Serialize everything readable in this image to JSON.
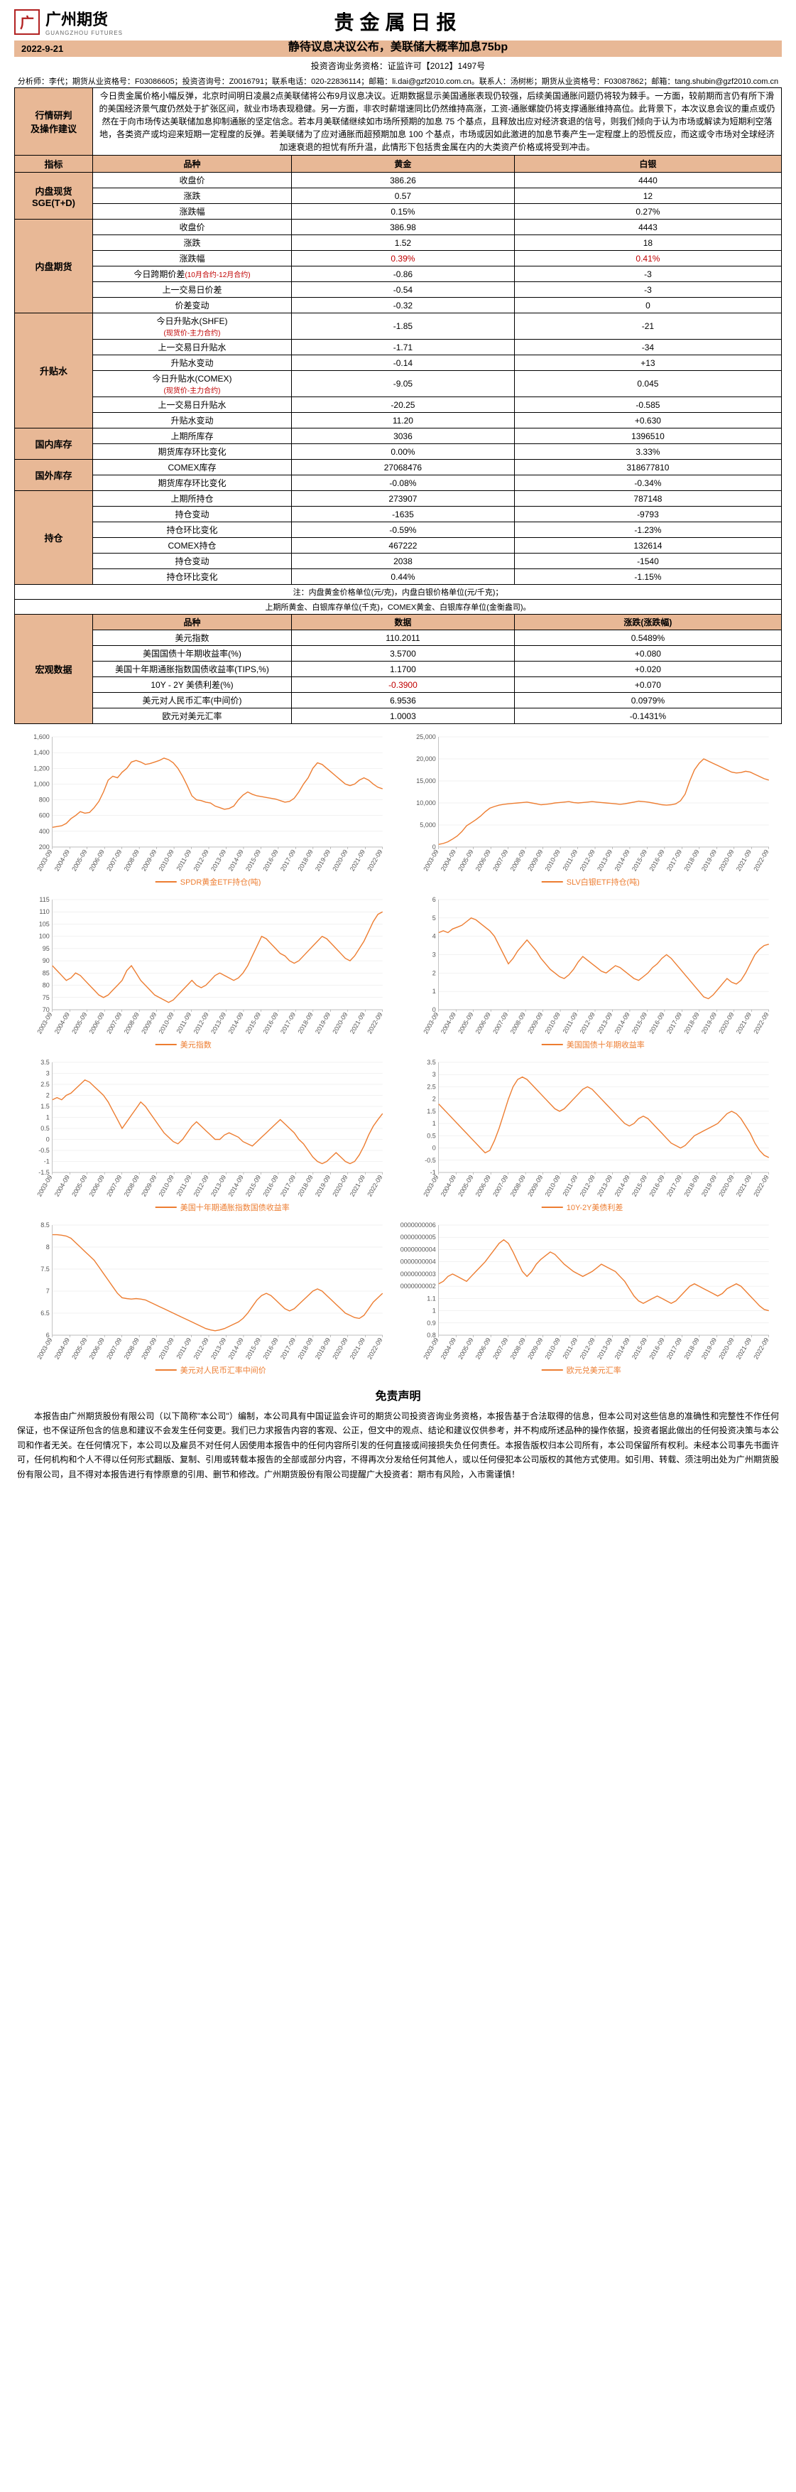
{
  "header": {
    "logo_char": "广",
    "logo_text": "广州期货",
    "logo_sub": "GUANGZHOU FUTURES",
    "main_title": "贵金属日报",
    "sub_title": "静待议息决议公布，美联储大概率加息75bp",
    "date": "2022-9-21",
    "cred1": "投资咨询业务资格：证监许可【2012】1497号",
    "cred2": "分析师：李代；期货从业资格号：F03086605；投资咨询号：Z0016791；联系电话：020-22836114；邮箱：li.dai@gzf2010.com.cn。联系人：汤树彬；期货从业资格号：F03087862；邮箱：tang.shubin@gzf2010.com.cn"
  },
  "sections": {
    "analysis_label": "行情研判\n及操作建议",
    "analysis_text": "今日贵金属价格小幅反弹，北京时间明日凌晨2点美联储将公布9月议息决议。近期数据显示美国通胀表现仍较强，后续美国通胀问题仍将较为棘手。一方面，较前期而言仍有所下滑的美国经济景气度仍然处于扩张区间，就业市场表现稳健。另一方面，非农时薪增速同比仍然维持高涨，工资-通胀螺旋仍将支撑通胀维持高位。此背景下，本次议息会议的重点或仍然在于向市场传达美联储加息抑制通胀的坚定信念。若本月美联储继续如市场所预期的加息 75 个基点，且释放出应对经济衰退的信号，则我们倾向于认为市场或解读为短期利空落地，各类资产或均迎来短期一定程度的反弹。若美联储为了应对通胀而超预期加息 100 个基点，市场或因如此激进的加息节奏产生一定程度上的恐慌反应，而这或令市场对全球经济加速衰退的担忧有所升温，此情形下包括贵金属在内的大类资产价格或将受到冲击。",
    "indicator_label": "指标",
    "col_variety": "品种",
    "col_gold": "黄金",
    "col_silver": "白银",
    "col_data": "数据",
    "col_change": "涨跌(涨跌幅)"
  },
  "groups": [
    {
      "label": "内盘现货\nSGE(T+D)",
      "rows": [
        {
          "n": "收盘价",
          "g": "386.26",
          "s": "4440"
        },
        {
          "n": "涨跌",
          "g": "0.57",
          "s": "12"
        },
        {
          "n": "涨跌幅",
          "g": "0.15%",
          "s": "0.27%"
        }
      ]
    },
    {
      "label": "内盘期货",
      "rows": [
        {
          "n": "收盘价",
          "g": "386.98",
          "s": "4443"
        },
        {
          "n": "涨跌",
          "g": "1.52",
          "s": "18"
        },
        {
          "n": "涨跌幅",
          "g": "0.39%",
          "s": "0.41%",
          "red": true
        },
        {
          "n": "今日跨期价差(10月合约-12月合约)",
          "g": "-0.86",
          "s": "-3",
          "nred": true
        },
        {
          "n": "上一交易日价差",
          "g": "-0.54",
          "s": "-3"
        },
        {
          "n": "价差变动",
          "g": "-0.32",
          "s": "0"
        }
      ]
    },
    {
      "label": "升贴水",
      "rows": [
        {
          "n": "今日升贴水(SHFE)",
          "sub": "(现货价-主力合约)",
          "g": "-1.85",
          "s": "-21"
        },
        {
          "n": "上一交易日升贴水",
          "g": "-1.71",
          "s": "-34"
        },
        {
          "n": "升贴水变动",
          "g": "-0.14",
          "s": "+13"
        },
        {
          "n": "今日升贴水(COMEX)",
          "sub": "(现货价-主力合约)",
          "g": "-9.05",
          "s": "0.045"
        },
        {
          "n": "上一交易日升贴水",
          "g": "-20.25",
          "s": "-0.585"
        },
        {
          "n": "升贴水变动",
          "g": "11.20",
          "s": "+0.630"
        }
      ]
    },
    {
      "label": "国内库存",
      "rows": [
        {
          "n": "上期所库存",
          "g": "3036",
          "s": "1396510"
        },
        {
          "n": "期货库存环比变化",
          "g": "0.00%",
          "s": "3.33%"
        }
      ]
    },
    {
      "label": "国外库存",
      "rows": [
        {
          "n": "COMEX库存",
          "g": "27068476",
          "s": "318677810"
        },
        {
          "n": "期货库存环比变化",
          "g": "-0.08%",
          "s": "-0.34%"
        }
      ]
    },
    {
      "label": "持仓",
      "rows": [
        {
          "n": "上期所持仓",
          "g": "273907",
          "s": "787148"
        },
        {
          "n": "持仓变动",
          "g": "-1635",
          "s": "-9793"
        },
        {
          "n": "持仓环比变化",
          "g": "-0.59%",
          "s": "-1.23%"
        },
        {
          "n": "COMEX持仓",
          "g": "467222",
          "s": "132614"
        },
        {
          "n": "持仓变动",
          "g": "2038",
          "s": "-1540"
        },
        {
          "n": "持仓环比变化",
          "g": "0.44%",
          "s": "-1.15%"
        }
      ]
    }
  ],
  "notes": [
    "注：内盘黄金价格单位(元/克)，内盘白银价格单位(元/千克)；",
    "上期所黄金、白银库存单位(千克)，COMEX黄金、白银库存单位(金衡盎司)。"
  ],
  "macro": {
    "label": "宏观数据",
    "rows": [
      {
        "n": "美元指数",
        "d": "110.2011",
        "c": "0.5489%"
      },
      {
        "n": "美国国债十年期收益率(%)",
        "d": "3.5700",
        "c": "+0.080"
      },
      {
        "n": "美国十年期通胀指数国债收益率(TIPS,%)",
        "d": "1.1700",
        "c": "+0.020"
      },
      {
        "n": "10Y - 2Y 美债利差(%)",
        "d": "-0.3900",
        "c": "+0.070",
        "dred": true
      },
      {
        "n": "美元对人民币汇率(中间价)",
        "d": "6.9536",
        "c": "0.0979%"
      },
      {
        "n": "欧元对美元汇率",
        "d": "1.0003",
        "c": "-0.1431%"
      }
    ]
  },
  "charts": [
    {
      "legend": "SPDR黄金ETF持仓(吨)",
      "ymin": 200,
      "ymax": 1600,
      "ystep": 200,
      "data": [
        450,
        460,
        470,
        500,
        560,
        600,
        650,
        630,
        640,
        700,
        780,
        900,
        1050,
        1100,
        1080,
        1150,
        1200,
        1280,
        1300,
        1280,
        1250,
        1260,
        1280,
        1300,
        1330,
        1310,
        1270,
        1200,
        1100,
        980,
        850,
        800,
        790,
        770,
        760,
        720,
        700,
        680,
        690,
        720,
        800,
        860,
        900,
        870,
        850,
        840,
        830,
        820,
        810,
        790,
        770,
        780,
        820,
        900,
        1000,
        1080,
        1200,
        1270,
        1250,
        1200,
        1150,
        1100,
        1050,
        1000,
        980,
        1000,
        1050,
        1080,
        1050,
        1000,
        960,
        940
      ]
    },
    {
      "legend": "SLV白银ETF持仓(吨)",
      "ymin": 0,
      "ymax": 25000,
      "ystep": 5000,
      "data": [
        600,
        800,
        1200,
        1800,
        2500,
        3500,
        4800,
        5500,
        6200,
        7000,
        8000,
        8800,
        9200,
        9500,
        9700,
        9800,
        9900,
        10000,
        10100,
        10200,
        10000,
        9800,
        9600,
        9700,
        9800,
        10000,
        10100,
        10200,
        10300,
        10100,
        10000,
        10100,
        10200,
        10300,
        10200,
        10100,
        10000,
        9900,
        9800,
        9700,
        9800,
        10000,
        10200,
        10400,
        10300,
        10200,
        10000,
        9800,
        9600,
        9500,
        9600,
        9800,
        10500,
        12000,
        15000,
        17500,
        19000,
        20000,
        19500,
        19000,
        18500,
        18000,
        17500,
        17000,
        16800,
        16900,
        17200,
        17000,
        16500,
        16000,
        15500,
        15200
      ]
    },
    {
      "legend": "美元指数",
      "ymin": 70,
      "ymax": 115,
      "ystep": 5,
      "data": [
        88,
        86,
        84,
        82,
        83,
        85,
        84,
        82,
        80,
        78,
        76,
        75,
        76,
        78,
        80,
        82,
        86,
        88,
        85,
        82,
        80,
        78,
        76,
        75,
        74,
        73,
        74,
        76,
        78,
        80,
        82,
        80,
        79,
        80,
        82,
        84,
        85,
        84,
        83,
        82,
        83,
        85,
        88,
        92,
        96,
        100,
        99,
        97,
        95,
        93,
        92,
        90,
        89,
        90,
        92,
        94,
        96,
        98,
        100,
        99,
        97,
        95,
        93,
        91,
        90,
        92,
        95,
        98,
        102,
        106,
        109,
        110
      ]
    },
    {
      "legend": "美国国债十年期收益率",
      "ymin": 0,
      "ymax": 6,
      "ystep": 1,
      "data": [
        4.2,
        4.3,
        4.2,
        4.4,
        4.5,
        4.6,
        4.8,
        5.0,
        4.9,
        4.7,
        4.5,
        4.3,
        4.0,
        3.5,
        3.0,
        2.5,
        2.8,
        3.2,
        3.5,
        3.8,
        3.5,
        3.2,
        2.8,
        2.5,
        2.2,
        2.0,
        1.8,
        1.7,
        1.9,
        2.2,
        2.6,
        2.9,
        2.7,
        2.5,
        2.3,
        2.1,
        2.0,
        2.2,
        2.4,
        2.3,
        2.1,
        1.9,
        1.7,
        1.6,
        1.8,
        2.0,
        2.3,
        2.5,
        2.8,
        3.0,
        2.8,
        2.5,
        2.2,
        1.9,
        1.6,
        1.3,
        1.0,
        0.7,
        0.6,
        0.8,
        1.1,
        1.4,
        1.7,
        1.5,
        1.4,
        1.6,
        2.0,
        2.5,
        3.0,
        3.3,
        3.5,
        3.57
      ]
    },
    {
      "legend": "美国十年期通胀指数国债收益率",
      "ymin": -1.5,
      "ymax": 3.5,
      "ystep": 0.5,
      "data": [
        1.8,
        1.9,
        1.8,
        2.0,
        2.1,
        2.3,
        2.5,
        2.7,
        2.6,
        2.4,
        2.2,
        2.0,
        1.7,
        1.3,
        0.9,
        0.5,
        0.8,
        1.1,
        1.4,
        1.7,
        1.5,
        1.2,
        0.9,
        0.6,
        0.3,
        0.1,
        -0.1,
        -0.2,
        0.0,
        0.3,
        0.6,
        0.8,
        0.6,
        0.4,
        0.2,
        0.0,
        0.0,
        0.2,
        0.3,
        0.2,
        0.1,
        -0.1,
        -0.2,
        -0.3,
        -0.1,
        0.1,
        0.3,
        0.5,
        0.7,
        0.9,
        0.7,
        0.5,
        0.3,
        0.0,
        -0.2,
        -0.5,
        -0.8,
        -1.0,
        -1.1,
        -1.0,
        -0.8,
        -0.6,
        -0.8,
        -1.0,
        -1.1,
        -1.0,
        -0.7,
        -0.3,
        0.2,
        0.6,
        0.9,
        1.17
      ]
    },
    {
      "legend": "10Y-2Y美债利差",
      "ymin": -1.0,
      "ymax": 3.5,
      "ystep": 0.5,
      "data": [
        1.8,
        1.6,
        1.4,
        1.2,
        1.0,
        0.8,
        0.6,
        0.4,
        0.2,
        0.0,
        -0.2,
        -0.1,
        0.3,
        0.8,
        1.4,
        2.0,
        2.5,
        2.8,
        2.9,
        2.8,
        2.6,
        2.4,
        2.2,
        2.0,
        1.8,
        1.6,
        1.5,
        1.6,
        1.8,
        2.0,
        2.2,
        2.4,
        2.5,
        2.4,
        2.2,
        2.0,
        1.8,
        1.6,
        1.4,
        1.2,
        1.0,
        0.9,
        1.0,
        1.2,
        1.3,
        1.2,
        1.0,
        0.8,
        0.6,
        0.4,
        0.2,
        0.1,
        0.0,
        0.1,
        0.3,
        0.5,
        0.6,
        0.7,
        0.8,
        0.9,
        1.0,
        1.2,
        1.4,
        1.5,
        1.4,
        1.2,
        0.9,
        0.6,
        0.2,
        -0.1,
        -0.3,
        -0.39
      ]
    },
    {
      "legend": "美元对人民币汇率中间价",
      "ymin": 6.0,
      "ymax": 8.5,
      "ystep": 0.5,
      "data": [
        8.28,
        8.28,
        8.27,
        8.25,
        8.2,
        8.1,
        8.0,
        7.9,
        7.8,
        7.7,
        7.55,
        7.4,
        7.25,
        7.1,
        6.95,
        6.85,
        6.83,
        6.82,
        6.83,
        6.82,
        6.8,
        6.75,
        6.7,
        6.65,
        6.6,
        6.55,
        6.5,
        6.45,
        6.4,
        6.35,
        6.3,
        6.25,
        6.2,
        6.15,
        6.12,
        6.1,
        6.12,
        6.15,
        6.2,
        6.25,
        6.3,
        6.38,
        6.5,
        6.65,
        6.8,
        6.9,
        6.95,
        6.9,
        6.8,
        6.7,
        6.6,
        6.55,
        6.6,
        6.7,
        6.8,
        6.9,
        7.0,
        7.05,
        7.0,
        6.9,
        6.8,
        6.7,
        6.6,
        6.5,
        6.45,
        6.4,
        6.38,
        6.45,
        6.6,
        6.75,
        6.85,
        6.95
      ]
    },
    {
      "legend": "欧元兑美元汇率",
      "ymin": 0.8,
      "ymax": 1.7,
      "ystep": 0.1,
      "data": [
        1.22,
        1.24,
        1.28,
        1.3,
        1.28,
        1.26,
        1.24,
        1.28,
        1.32,
        1.36,
        1.4,
        1.45,
        1.5,
        1.55,
        1.58,
        1.55,
        1.48,
        1.4,
        1.32,
        1.28,
        1.32,
        1.38,
        1.42,
        1.45,
        1.48,
        1.46,
        1.42,
        1.38,
        1.35,
        1.32,
        1.3,
        1.28,
        1.3,
        1.32,
        1.35,
        1.38,
        1.36,
        1.34,
        1.32,
        1.28,
        1.24,
        1.18,
        1.12,
        1.08,
        1.06,
        1.08,
        1.1,
        1.12,
        1.1,
        1.08,
        1.06,
        1.08,
        1.12,
        1.16,
        1.2,
        1.22,
        1.2,
        1.18,
        1.16,
        1.14,
        1.12,
        1.14,
        1.18,
        1.2,
        1.22,
        1.2,
        1.16,
        1.12,
        1.08,
        1.04,
        1.01,
        1.0
      ]
    }
  ],
  "xaxis": [
    "2003-09",
    "2004-09",
    "2005-09",
    "2006-09",
    "2007-09",
    "2008-09",
    "2009-09",
    "2010-09",
    "2011-09",
    "2012-09",
    "2013-09",
    "2014-09",
    "2015-09",
    "2016-09",
    "2017-09",
    "2018-09",
    "2019-09",
    "2020-09",
    "2021-09",
    "2022-09"
  ],
  "disclaimer": {
    "title": "免责声明",
    "text": "本报告由广州期货股份有限公司（以下简称\"本公司\"）编制，本公司具有中国证监会许可的期货公司投资咨询业务资格，本报告基于合法取得的信息，但本公司对这些信息的准确性和完整性不作任何保证，也不保证所包含的信息和建议不会发生任何变更。我们已力求报告内容的客观、公正，但文中的观点、结论和建议仅供参考，并不构成所述品种的操作依据，投资者据此做出的任何投资决策与本公司和作者无关。在任何情况下，本公司以及雇员不对任何人因使用本报告中的任何内容所引发的任何直接或间接损失负任何责任。本报告版权归本公司所有，本公司保留所有权利。未经本公司事先书面许可，任何机构和个人不得以任何形式翻版、复制、引用或转载本报告的全部或部分内容，不得再次分发给任何其他人，或以任何侵犯本公司版权的其他方式使用。如引用、转载、须注明出处为广州期货股份有限公司，且不得对本报告进行有悖原意的引用、删节和修改。广州期货股份有限公司提醒广大投资者：期市有风险，入市需谨慎！"
  },
  "colors": {
    "accent": "#e8b896",
    "line": "#ed7d31",
    "red": "#c00000"
  }
}
